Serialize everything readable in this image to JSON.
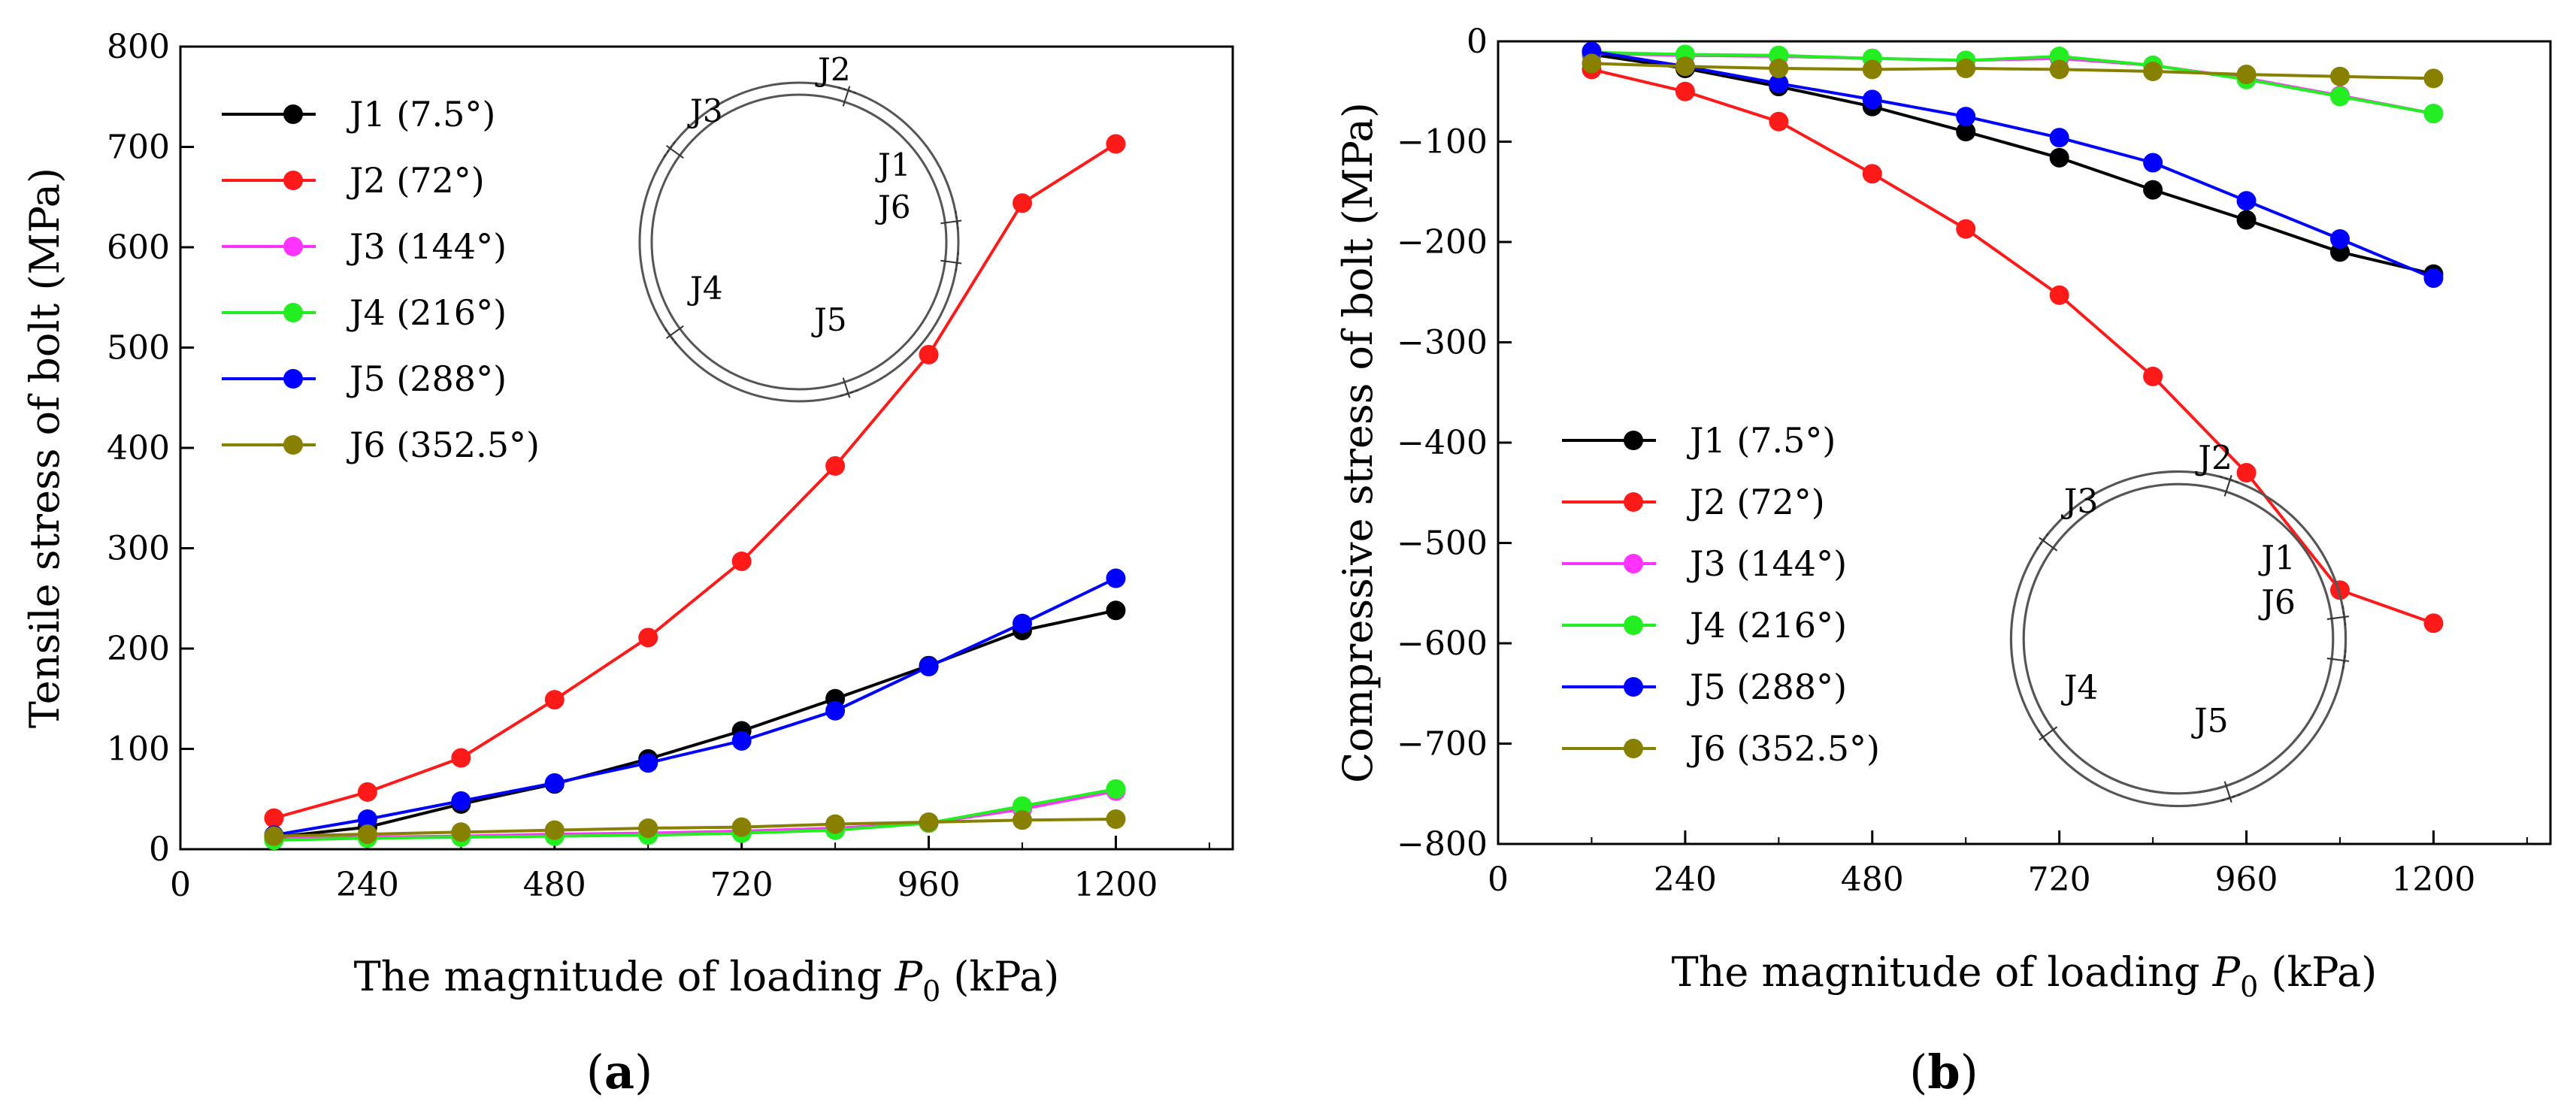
{
  "figure": {
    "panels": [
      {
        "id": "a",
        "label_open": "(",
        "label_letter": "a",
        "label_close": ")",
        "ylabel": "Tensile stress of bolt (MPa)",
        "xlabel_prefix": "The magnitude of  loading ",
        "xlabel_symbol": "P",
        "xlabel_subscript": "0",
        "xlabel_suffix": " (kPa)",
        "ring_labels": [
          "J2",
          "J3",
          "J1",
          "J6",
          "J4",
          "J5"
        ]
      },
      {
        "id": "b",
        "label_open": "(",
        "label_letter": "b",
        "label_close": ")",
        "ylabel": "Compressive stress of bolt (MPa)",
        "xlabel_prefix": "The magnitude of  loading ",
        "xlabel_symbol": "P",
        "xlabel_subscript": "0",
        "xlabel_suffix": " (kPa)",
        "ring_labels": [
          "J2",
          "J3",
          "J1",
          "J6",
          "J4",
          "J5"
        ]
      }
    ]
  },
  "chart_data": [
    {
      "type": "line",
      "title": "",
      "xlabel": "The magnitude of  loading P0 (kPa)",
      "ylabel": "Tensile stress of bolt (MPa)",
      "xlim": [
        0,
        1350
      ],
      "ylim": [
        0,
        800
      ],
      "x_ticks": [
        0,
        240,
        480,
        720,
        960,
        1200
      ],
      "y_ticks": [
        0,
        100,
        200,
        300,
        400,
        500,
        600,
        700,
        800
      ],
      "x": [
        120,
        240,
        360,
        480,
        600,
        720,
        840,
        960,
        1080,
        1200
      ],
      "legend_position": "top-left",
      "series": [
        {
          "name": "J1 (7.5°)",
          "color": "#000000",
          "values": [
            12,
            22,
            45,
            65,
            90,
            118,
            150,
            183,
            218,
            238
          ]
        },
        {
          "name": "J2 (72°)",
          "color": "#ff1a1a",
          "values": [
            31,
            57,
            91,
            149,
            211,
            287,
            382,
            493,
            644,
            703
          ]
        },
        {
          "name": "J3 (144°)",
          "color": "#ff33ff",
          "values": [
            10,
            12,
            13,
            15,
            16,
            18,
            21,
            26,
            40,
            58
          ]
        },
        {
          "name": "J4 (216°)",
          "color": "#22ee22",
          "values": [
            9,
            11,
            12,
            13,
            14,
            16,
            19,
            26,
            43,
            60
          ]
        },
        {
          "name": "J5 (288°)",
          "color": "#0000ff",
          "values": [
            14,
            30,
            48,
            66,
            86,
            108,
            138,
            182,
            225,
            270
          ]
        },
        {
          "name": "J6 (352.5°)",
          "color": "#888000",
          "values": [
            13,
            15,
            17,
            19,
            21,
            22,
            25,
            27,
            29,
            30
          ]
        }
      ]
    },
    {
      "type": "line",
      "title": "",
      "xlabel": "The magnitude of  loading P0 (kPa)",
      "ylabel": "Compressive stress of bolt (MPa)",
      "xlim": [
        0,
        1350
      ],
      "ylim": [
        -800,
        0
      ],
      "x_ticks": [
        0,
        240,
        480,
        720,
        960,
        1200
      ],
      "y_ticks": [
        0,
        -100,
        -200,
        -300,
        -400,
        -500,
        -600,
        -700,
        -800
      ],
      "y_tick_labels": [
        "0",
        "−100",
        "−200",
        "−300",
        "−400",
        "−500",
        "−600",
        "−700",
        "−800"
      ],
      "x": [
        120,
        240,
        360,
        480,
        600,
        720,
        840,
        960,
        1080,
        1200
      ],
      "legend_position": "bottom-left",
      "series": [
        {
          "name": "J1 (7.5°)",
          "color": "#000000",
          "values": [
            -13,
            -27,
            -45,
            -65,
            -90,
            -116,
            -148,
            -178,
            -210,
            -232
          ]
        },
        {
          "name": "J2 (72°)",
          "color": "#ff1a1a",
          "values": [
            -28,
            -50,
            -80,
            -132,
            -187,
            -253,
            -334,
            -430,
            -547,
            -580
          ]
        },
        {
          "name": "J3 (144°)",
          "color": "#ff33ff",
          "values": [
            -12,
            -14,
            -15,
            -17,
            -19,
            -17,
            -24,
            -37,
            -54,
            -72
          ]
        },
        {
          "name": "J4 (216°)",
          "color": "#22ee22",
          "values": [
            -11,
            -13,
            -14,
            -17,
            -19,
            -15,
            -24,
            -38,
            -55,
            -72
          ]
        },
        {
          "name": "J5 (288°)",
          "color": "#0000ff",
          "values": [
            -10,
            -25,
            -42,
            -58,
            -75,
            -96,
            -121,
            -159,
            -197,
            -236
          ]
        },
        {
          "name": "J6 (352.5°)",
          "color": "#888000",
          "values": [
            -22,
            -25,
            -27,
            -28,
            -27,
            -28,
            -30,
            -33,
            -35,
            -37
          ]
        }
      ]
    }
  ]
}
